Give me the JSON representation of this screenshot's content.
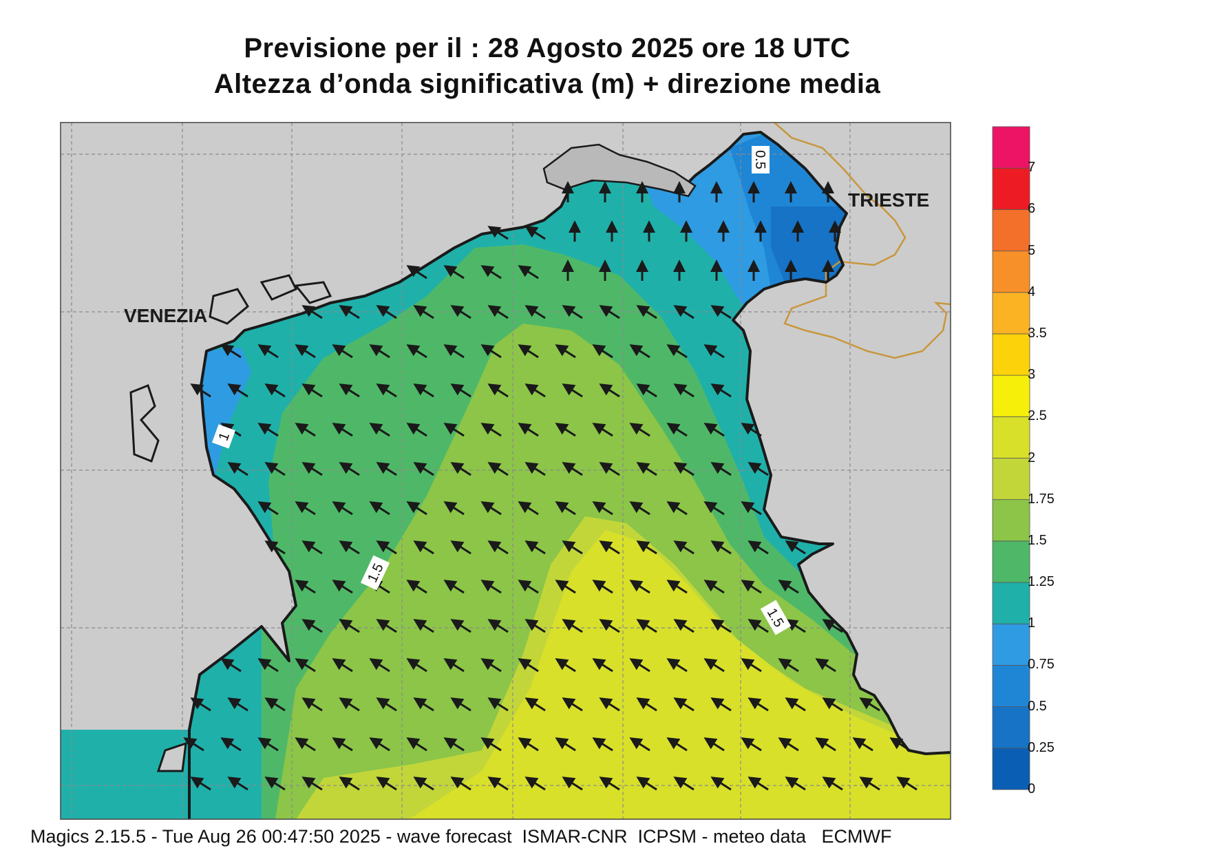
{
  "header": {
    "line1": "Previsione per il  :  28   Agosto  2025   ore 18 UTC",
    "line2": "Altezza d’onda significativa (m) + direzione media"
  },
  "map": {
    "cities": {
      "venezia": "VENEZIA",
      "trieste": "TRIESTE"
    },
    "contour_labels": {
      "c05": "0.5",
      "c1": "1",
      "c15a": "1.5",
      "c15b": "1.5"
    },
    "land_color": "#cccccc",
    "coast_color": "#1a1a1a",
    "border_color": "#c8963c",
    "arrow_color": "#1a1a1a",
    "wave_direction": "toward north-west"
  },
  "colorbar": {
    "labels": [
      "0",
      "0.25",
      "0.5",
      "0.75",
      "1",
      "1.25",
      "1.5",
      "1.75",
      "2",
      "2.5",
      "3",
      "3.5",
      "4",
      "5",
      "6",
      "7"
    ],
    "colors": [
      "#0a5fb4",
      "#1673c6",
      "#1f86d6",
      "#2f9be2",
      "#20b0aa",
      "#4fb868",
      "#8cc548",
      "#c2d63a",
      "#d8e02a",
      "#f5ef0a",
      "#fcd20a",
      "#fbb323",
      "#f79028",
      "#f3702a",
      "#ed1c24",
      "#ed1466"
    ]
  },
  "footer": {
    "text": "Magics 2.15.5 - Tue Aug 26 00:47:50 2025 - wave forecast  ISMAR-CNR  ICPSM - meteo data   ECMWF"
  }
}
